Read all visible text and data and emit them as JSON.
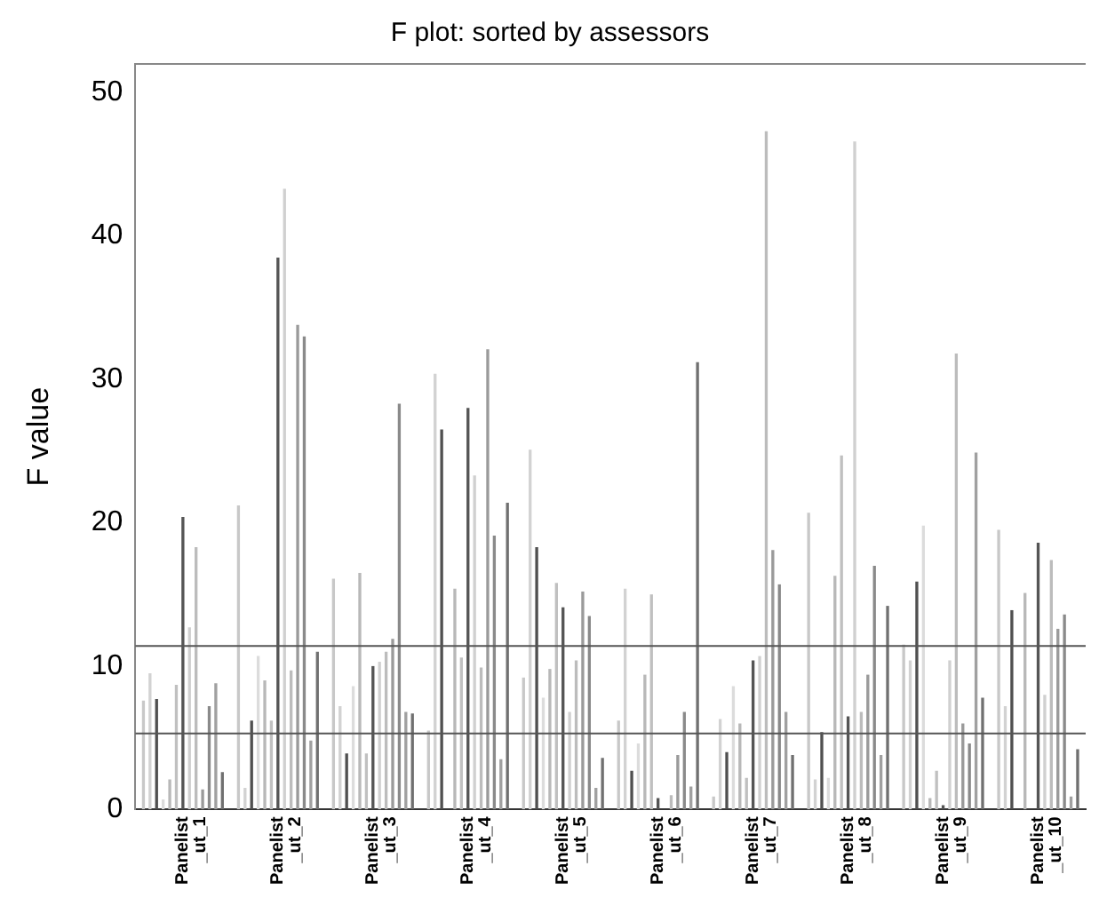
{
  "chart_data": {
    "type": "bar",
    "title": "F plot: sorted by assessors",
    "ylabel": "F value",
    "categories": [
      "Panelist_ut_1",
      "Panelist_ut_2",
      "Panelist_ut_3",
      "Panelist_ut_4",
      "Panelist_ut_5",
      "Panelist_ut_6",
      "Panelist_ut_7",
      "Panelist_ut_8",
      "Panelist_ut_9",
      "Panelist_ut_10"
    ],
    "series": [
      {
        "color": "#c8c8c8",
        "values": [
          7.6,
          21.2,
          16.1,
          5.5,
          9.2,
          6.2,
          0.9,
          20.7,
          11.5,
          19.5
        ]
      },
      {
        "color": "#d2d2d2",
        "values": [
          9.5,
          1.5,
          7.2,
          30.4,
          25.1,
          15.4,
          6.3,
          2.1,
          10.4,
          7.2
        ]
      },
      {
        "color": "#505050",
        "values": [
          7.7,
          6.2,
          3.9,
          26.5,
          18.3,
          2.7,
          4.0,
          5.4,
          15.9,
          13.9
        ]
      },
      {
        "color": "#dcdcdc",
        "values": [
          0.7,
          10.7,
          8.6,
          null,
          7.8,
          4.6,
          8.6,
          2.2,
          19.8,
          null
        ]
      },
      {
        "color": "#b8b8b8",
        "values": [
          2.1,
          9.0,
          16.5,
          15.4,
          9.8,
          9.4,
          6.0,
          16.3,
          0.8,
          15.1
        ]
      },
      {
        "color": "#c0c0c0",
        "values": [
          8.7,
          6.2,
          3.9,
          10.6,
          15.8,
          15.0,
          2.2,
          24.7,
          2.7,
          null
        ]
      },
      {
        "color": "#555555",
        "values": [
          20.4,
          38.5,
          10.0,
          28.0,
          14.1,
          0.8,
          10.4,
          6.5,
          0.3,
          18.6
        ]
      },
      {
        "color": "#d0d0d0",
        "values": [
          12.7,
          43.3,
          10.3,
          23.3,
          6.8,
          null,
          10.7,
          46.6,
          10.4,
          8.0
        ]
      },
      {
        "color": "#bcbcbc",
        "values": [
          18.3,
          9.7,
          11.0,
          9.9,
          10.4,
          1.0,
          47.3,
          6.8,
          31.8,
          17.4
        ]
      },
      {
        "color": "#9a9a9a",
        "values": [
          1.4,
          33.8,
          11.9,
          32.1,
          15.2,
          3.8,
          18.1,
          9.4,
          6.0,
          12.6
        ]
      },
      {
        "color": "#8a8a8a",
        "values": [
          7.2,
          33.0,
          28.3,
          19.1,
          13.5,
          6.8,
          15.7,
          17.0,
          4.6,
          13.6
        ]
      },
      {
        "color": "#a0a0a0",
        "values": [
          8.8,
          4.8,
          6.8,
          3.5,
          1.5,
          1.6,
          6.8,
          3.8,
          24.9,
          0.9
        ]
      },
      {
        "color": "#707070",
        "values": [
          2.6,
          11.0,
          6.7,
          21.4,
          3.6,
          31.2,
          3.8,
          14.2,
          7.8,
          4.2
        ]
      }
    ],
    "ylim": [
      0,
      52
    ],
    "yticks": [
      0,
      10,
      20,
      30,
      40,
      50
    ],
    "grid": false,
    "legend": false,
    "ref_lines": [
      {
        "axis": "y",
        "value": 11.4,
        "color": "#555555"
      },
      {
        "axis": "y",
        "value": 5.3,
        "color": "#555555"
      }
    ]
  }
}
